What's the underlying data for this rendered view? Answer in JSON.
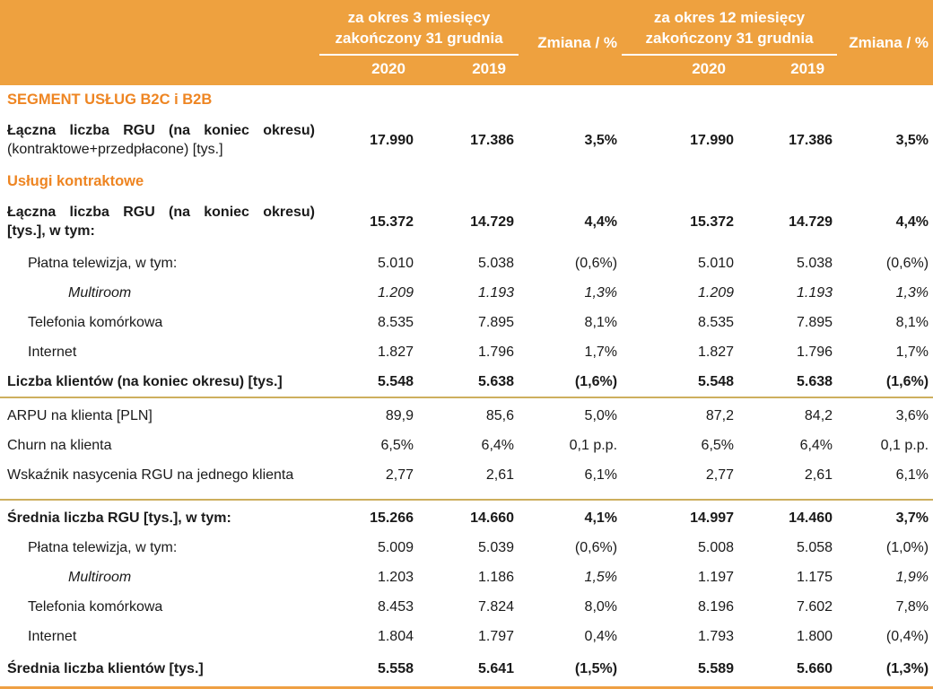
{
  "theme": {
    "header_band_color": "#EEA13F",
    "section_text_color": "#EE8522",
    "gold_rule_color": "#CDAF5E",
    "bottom_rule_color": "#EFA044"
  },
  "header": {
    "period_3m": {
      "line1": "za okres 3 miesięcy",
      "line2": "zakończony 31 grudnia",
      "year_current": "2020",
      "year_prior": "2019"
    },
    "change_3m": "Zmiana / %",
    "period_12m": {
      "line1": "za okres 12 miesięcy",
      "line2": "zakończony 31 grudnia",
      "year_current": "2020",
      "year_prior": "2019"
    },
    "change_12m": "Zmiana / %"
  },
  "table": {
    "rows": [
      {
        "type": "section",
        "label": "SEGMENT USŁUG B2C i B2B"
      },
      {
        "type": "data",
        "label": "Łączna liczba RGU (na koniec okresu)",
        "label_line2": "(kontraktowe+przedpłacone) [tys.]",
        "label2_regular": true,
        "bold": true,
        "tall": true,
        "indent": 0,
        "cells": [
          "17.990",
          "17.386",
          "3,5%",
          "17.990",
          "17.386",
          "3,5%"
        ]
      },
      {
        "type": "section",
        "label": "Usługi kontraktowe"
      },
      {
        "type": "data",
        "label": "Łączna liczba RGU (na koniec okresu)",
        "label_line2": "[tys.], w tym:",
        "bold": true,
        "tall": true,
        "indent": 0,
        "cells": [
          "15.372",
          "14.729",
          "4,4%",
          "15.372",
          "14.729",
          "4,4%"
        ]
      },
      {
        "type": "data",
        "label": "Płatna telewizja, w tym:",
        "indent": 1,
        "cells": [
          "5.010",
          "5.038",
          "(0,6%)",
          "5.010",
          "5.038",
          "(0,6%)"
        ]
      },
      {
        "type": "data",
        "label": "Multiroom",
        "indent": 2,
        "italic": true,
        "cells": [
          "1.209",
          "1.193",
          "1,3%",
          "1.209",
          "1.193",
          "1,3%"
        ]
      },
      {
        "type": "data",
        "label": "Telefonia komórkowa",
        "indent": 1,
        "cells": [
          "8.535",
          "7.895",
          "8,1%",
          "8.535",
          "7.895",
          "8,1%"
        ]
      },
      {
        "type": "data",
        "label": "Internet",
        "indent": 1,
        "cells": [
          "1.827",
          "1.796",
          "1,7%",
          "1.827",
          "1.796",
          "1,7%"
        ]
      },
      {
        "type": "data",
        "label": "Liczba klientów (na koniec okresu) [tys.]",
        "bold": true,
        "rule_below": true,
        "indent": 0,
        "cells": [
          "5.548",
          "5.638",
          "(1,6%)",
          "5.548",
          "5.638",
          "(1,6%)"
        ]
      },
      {
        "type": "data",
        "label": "ARPU na klienta [PLN]",
        "indent": 0,
        "pad_top": true,
        "cells": [
          "89,9",
          "85,6",
          "5,0%",
          "87,2",
          "84,2",
          "3,6%"
        ]
      },
      {
        "type": "data",
        "label": "Churn na klienta",
        "indent": 0,
        "cells": [
          "6,5%",
          "6,4%",
          "0,1 p.p.",
          "6,5%",
          "6,4%",
          "0,1 p.p."
        ]
      },
      {
        "type": "data",
        "label": "Wskaźnik nasycenia RGU na jednego klienta",
        "indent": 0,
        "rule_below": true,
        "pad_bottom": true,
        "cells": [
          "2,77",
          "2,61",
          "6,1%",
          "2,77",
          "2,61",
          "6,1%"
        ]
      },
      {
        "type": "data",
        "label": "Średnia liczba RGU [tys.], w tym:",
        "bold": true,
        "indent": 0,
        "pad_top": true,
        "cells": [
          "15.266",
          "14.660",
          "4,1%",
          "14.997",
          "14.460",
          "3,7%"
        ]
      },
      {
        "type": "data",
        "label": "Płatna telewizja, w tym:",
        "indent": 1,
        "cells": [
          "5.009",
          "5.039",
          "(0,6%)",
          "5.008",
          "5.058",
          "(1,0%)"
        ]
      },
      {
        "type": "data",
        "label": "Multiroom",
        "indent": 2,
        "label_italic": true,
        "cells": [
          "1.203",
          "1.186",
          "1,5%",
          "1.197",
          "1.175",
          "1,9%"
        ],
        "cells_italic": [
          false,
          false,
          true,
          false,
          false,
          true
        ]
      },
      {
        "type": "data",
        "label": "Telefonia komórkowa",
        "indent": 1,
        "cells": [
          "8.453",
          "7.824",
          "8,0%",
          "8.196",
          "7.602",
          "7,8%"
        ]
      },
      {
        "type": "data",
        "label": "Internet",
        "indent": 1,
        "cells": [
          "1.804",
          "1.797",
          "0,4%",
          "1.793",
          "1.800",
          "(0,4%)"
        ]
      },
      {
        "type": "data",
        "label": "Średnia liczba klientów [tys.]",
        "bold": true,
        "last": true,
        "indent": 0,
        "cells": [
          "5.558",
          "5.641",
          "(1,5%)",
          "5.589",
          "5.660",
          "(1,3%)"
        ]
      }
    ]
  }
}
